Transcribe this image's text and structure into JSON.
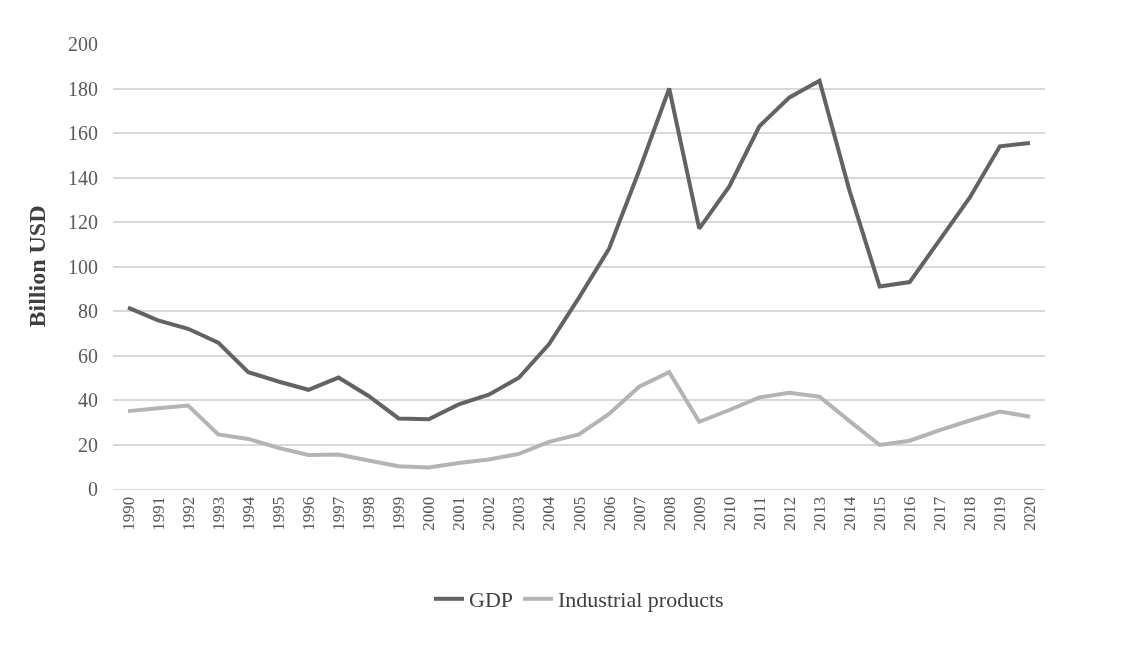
{
  "chart_data": {
    "type": "line",
    "ylabel": "Billion USD",
    "categories": [
      "1990",
      "1991",
      "1992",
      "1993",
      "1994",
      "1995",
      "1996",
      "1997",
      "1998",
      "1999",
      "2000",
      "2001",
      "2002",
      "2003",
      "2004",
      "2005",
      "2006",
      "2007",
      "2008",
      "2009",
      "2010",
      "2011",
      "2012",
      "2013",
      "2014",
      "2015",
      "2016",
      "2017",
      "2018",
      "2019",
      "2020"
    ],
    "series": [
      {
        "name": "GDP",
        "color": "#636363",
        "values": [
          81.5,
          75.8,
          72,
          65.8,
          52.5,
          48.3,
          44.6,
          50.1,
          41.8,
          31.7,
          31.3,
          38,
          42.4,
          50,
          65,
          86,
          108,
          143,
          180,
          117,
          136,
          163,
          176,
          183.5,
          134,
          91,
          93,
          112,
          131,
          154,
          155.5
        ]
      },
      {
        "name": "Industrial products",
        "color": "#b4b4b4",
        "values": [
          35,
          36.3,
          37.5,
          24.5,
          22.5,
          18.5,
          15.3,
          15.5,
          12.8,
          10.2,
          9.7,
          11.7,
          13.3,
          15.8,
          21.2,
          24.5,
          33.7,
          46,
          52.5,
          30.2,
          35.5,
          41.2,
          43.2,
          41.5,
          30.5,
          19.8,
          21.7,
          26.5,
          30.8,
          34.8,
          32.5
        ]
      }
    ],
    "ylim": [
      0,
      200
    ],
    "yticks": [
      0,
      20,
      40,
      60,
      80,
      100,
      120,
      140,
      160,
      180,
      200
    ],
    "grid": "y",
    "legend": "bottom",
    "marker": "none",
    "line_style": "solid"
  }
}
